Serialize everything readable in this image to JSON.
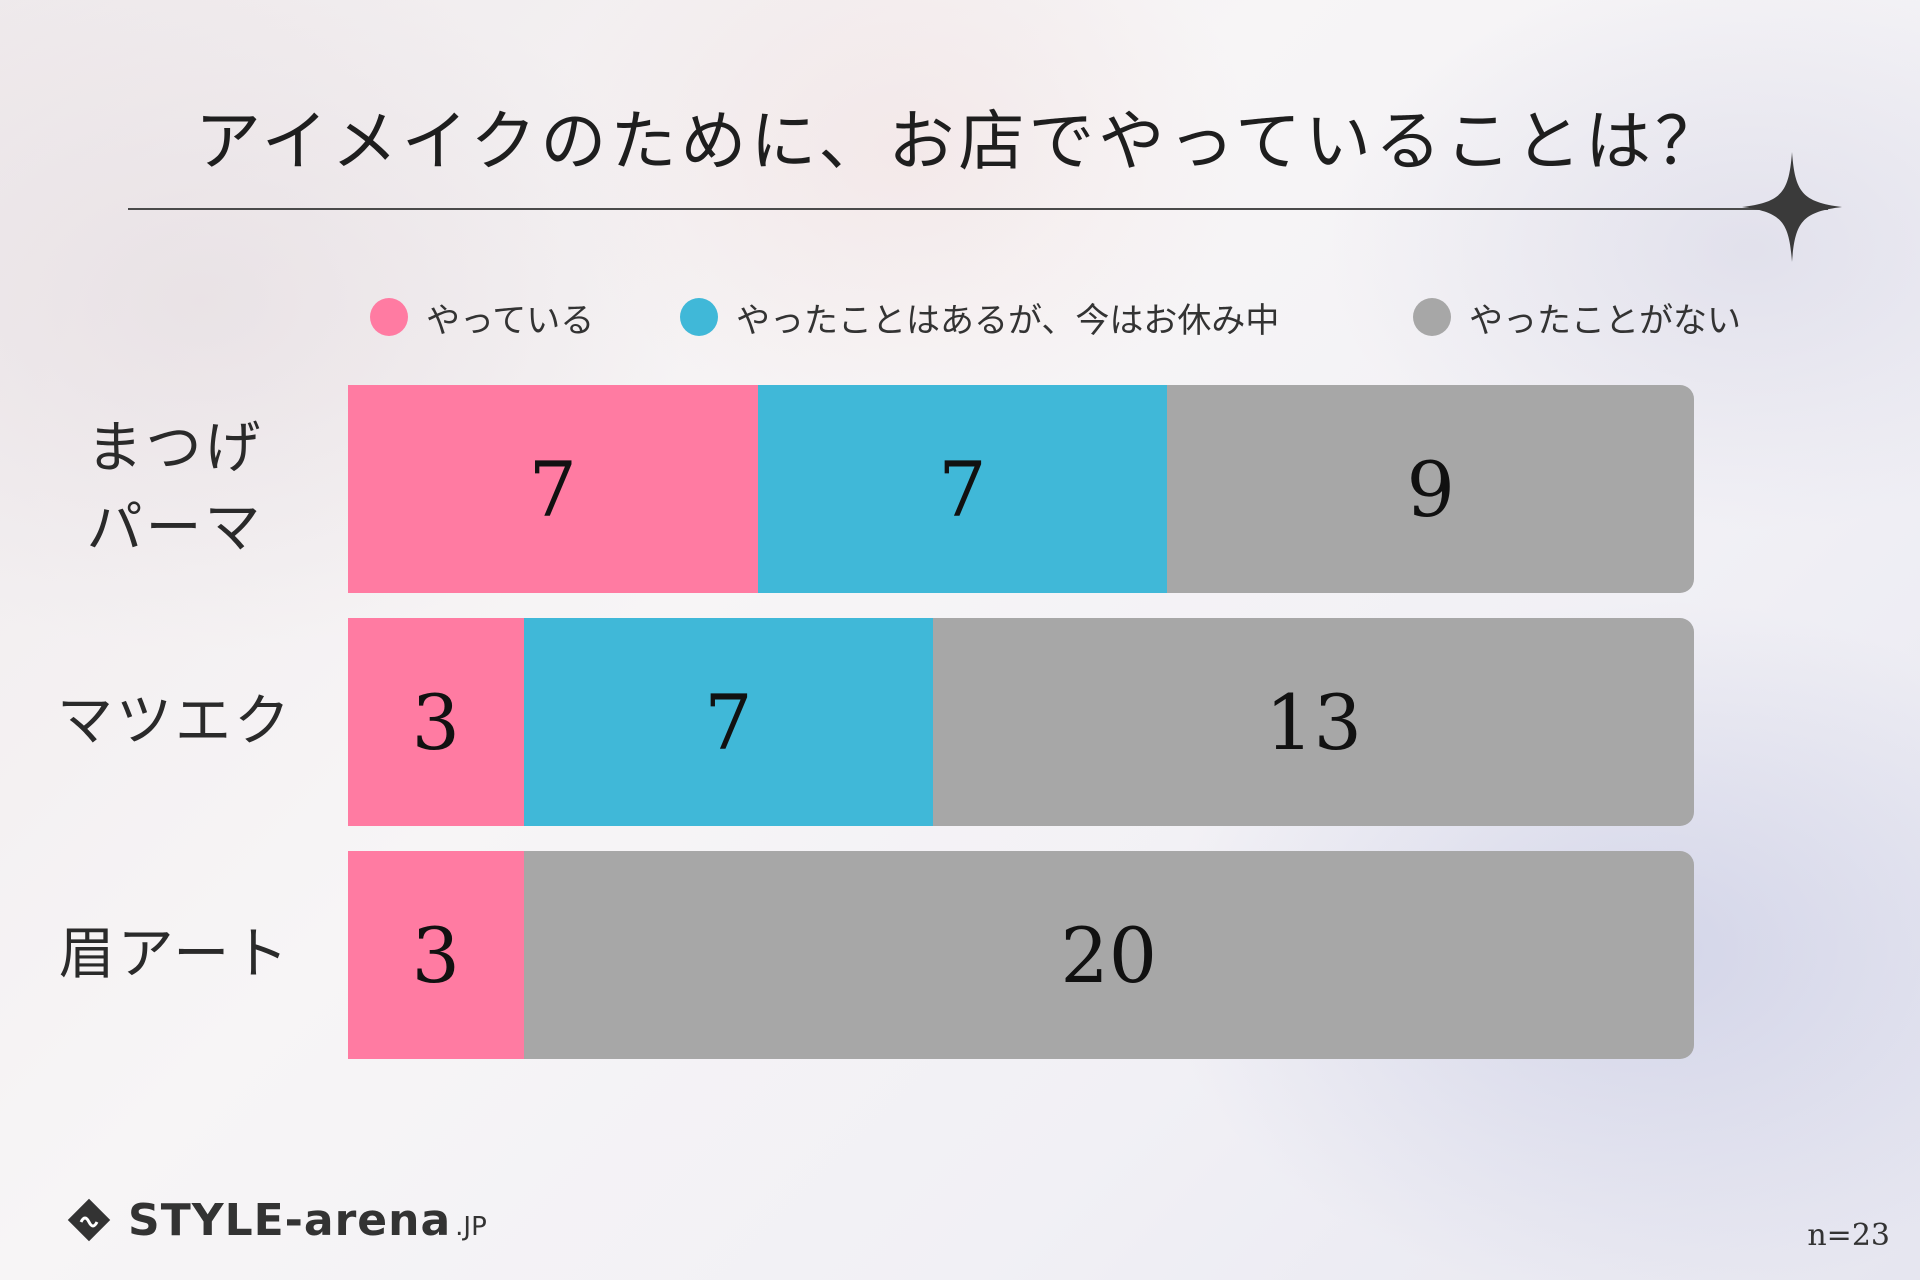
{
  "title": "アイメイクのために、お店でやっていることは？",
  "colors": {
    "doing": "#ff7ba2",
    "paused": "#40b8d8",
    "never": "#a7a7a7"
  },
  "chart_data": {
    "type": "bar",
    "orientation": "horizontal",
    "stacked": true,
    "categories": [
      "まつげ\nパーマ",
      "マツエク",
      "眉アート"
    ],
    "category_lines": [
      [
        "まつげ",
        "パーマ"
      ],
      [
        "マツエク"
      ],
      [
        "眉アート"
      ]
    ],
    "series": [
      {
        "name": "やっている",
        "values": [
          7,
          3,
          3
        ],
        "color": "#ff7ba2"
      },
      {
        "name": "やったことはあるが、今はお休み中",
        "values": [
          7,
          7,
          0
        ],
        "color": "#40b8d8"
      },
      {
        "name": "やったことがない",
        "values": [
          9,
          13,
          20
        ],
        "color": "#a7a7a7"
      }
    ],
    "total": 23,
    "legend_position": "top",
    "grid": false
  },
  "n_note": "n=23",
  "logo": {
    "text": "STYLE-arena",
    "suffix": ".JP",
    "icon": "style-arena-logo-icon"
  }
}
